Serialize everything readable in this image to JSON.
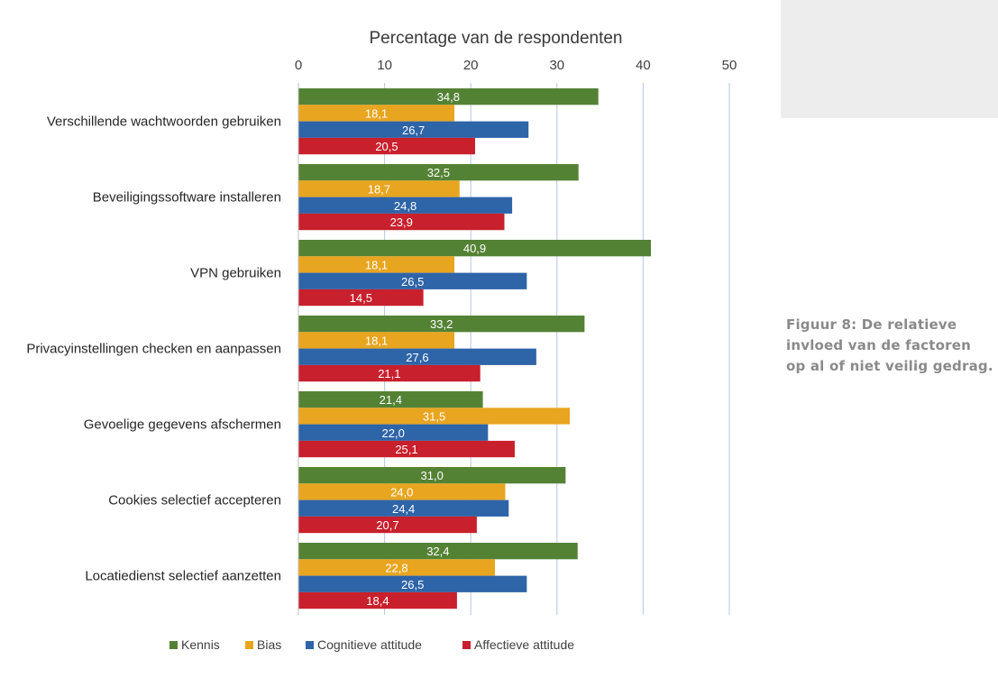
{
  "caption": "Figuur 8: De relatieve invloed van de factoren op al of niet veilig gedrag.",
  "chart_data": {
    "type": "bar",
    "orientation": "horizontal",
    "title": "Percentage van de respondenten",
    "xlim": [
      0,
      50
    ],
    "ticks": [
      0,
      10,
      20,
      30,
      40,
      50
    ],
    "tick_labels": [
      "0",
      "10",
      "20",
      "30",
      "40",
      "50"
    ],
    "grid": true,
    "legend_position": "bottom",
    "categories": [
      "Verschillende wachtwoorden gebruiken",
      "Beveiligingssoftware installeren",
      "VPN gebruiken",
      "Privacyinstellingen checken en aanpassen",
      "Gevoelige gegevens afschermen",
      "Cookies selectief accepteren",
      "Locatiedienst selectief aanzetten"
    ],
    "series": [
      {
        "name": "Kennis",
        "color": "#548235",
        "values": [
          34.8,
          32.5,
          40.9,
          33.2,
          21.4,
          31.0,
          32.4
        ],
        "labels": [
          "34,8",
          "32,5",
          "40,9",
          "33,2",
          "21,4",
          "31,0",
          "32,4"
        ]
      },
      {
        "name": "Bias",
        "color": "#e8a520",
        "values": [
          18.1,
          18.7,
          18.1,
          18.1,
          31.5,
          24.0,
          22.8
        ],
        "labels": [
          "18,1",
          "18,7",
          "18,1",
          "18,1",
          "31,5",
          "24,0",
          "22,8"
        ]
      },
      {
        "name": "Cognitieve attitude",
        "color": "#2e64a8",
        "values": [
          26.7,
          24.8,
          26.5,
          27.6,
          22.0,
          24.4,
          26.5
        ],
        "labels": [
          "26,7",
          "24,8",
          "26,5",
          "27,6",
          "22,0",
          "24,4",
          "26,5"
        ]
      },
      {
        "name": "Affectieve attitude",
        "color": "#c8202c",
        "values": [
          20.5,
          23.9,
          14.5,
          21.1,
          25.1,
          20.7,
          18.4
        ],
        "labels": [
          "20,5",
          "23,9",
          "14,5",
          "21,1",
          "25,1",
          "20,7",
          "18,4"
        ]
      }
    ]
  }
}
